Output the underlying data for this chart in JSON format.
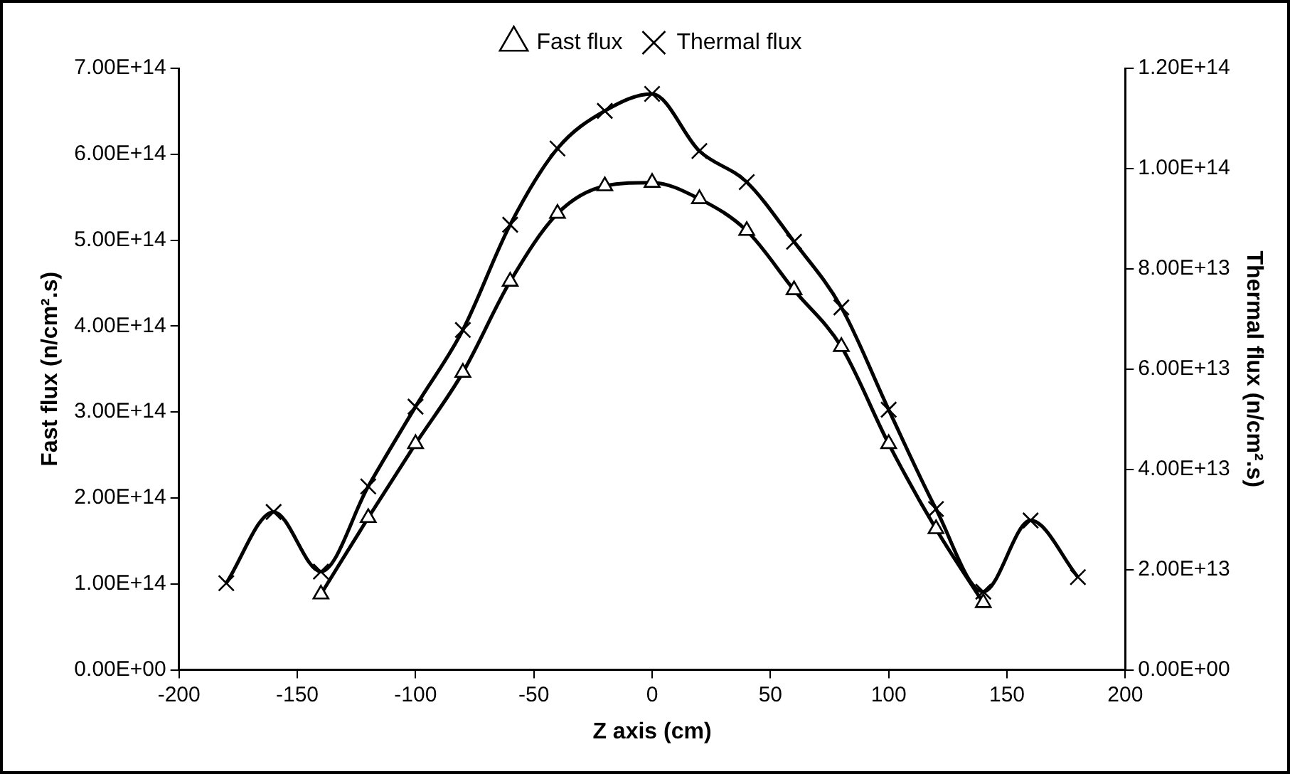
{
  "chart_data": {
    "type": "line",
    "xlabel": "Z axis (cm)",
    "ylabel": "Fast flux (n/cm².s)",
    "y2label": "Thermal flux (n/cm².s)",
    "xlim": [
      -200,
      200
    ],
    "xticks": [
      -200,
      -150,
      -100,
      -50,
      0,
      50,
      100,
      150,
      200
    ],
    "ylim": [
      0,
      700000000000000.0
    ],
    "yticks": [
      {
        "value": 0,
        "label": "0.00E+00"
      },
      {
        "value": 100000000000000.0,
        "label": "1.00E+14"
      },
      {
        "value": 200000000000000.0,
        "label": "2.00E+14"
      },
      {
        "value": 300000000000000.0,
        "label": "3.00E+14"
      },
      {
        "value": 400000000000000.0,
        "label": "4.00E+14"
      },
      {
        "value": 500000000000000.0,
        "label": "5.00E+14"
      },
      {
        "value": 600000000000000.0,
        "label": "6.00E+14"
      },
      {
        "value": 700000000000000.0,
        "label": "7.00E+14"
      }
    ],
    "y2lim": [
      0,
      120000000000000.0
    ],
    "y2ticks": [
      {
        "value": 0,
        "label": "0.00E+00"
      },
      {
        "value": 20000000000000.0,
        "label": "2.00E+13"
      },
      {
        "value": 40000000000000.0,
        "label": "4.00E+13"
      },
      {
        "value": 60000000000000.0,
        "label": "6.00E+13"
      },
      {
        "value": 80000000000000.0,
        "label": "8.00E+13"
      },
      {
        "value": 100000000000000.0,
        "label": "1.00E+14"
      },
      {
        "value": 120000000000000.0,
        "label": "1.20E+14"
      }
    ],
    "grid": false,
    "legend": "top",
    "series": [
      {
        "name": "Fast flux",
        "color": "#000000",
        "marker": "triangle",
        "x": [
          -140,
          -120,
          -100,
          -80,
          -60,
          -40,
          -20,
          0,
          20,
          40,
          60,
          80,
          100,
          120,
          140
        ],
        "values": [
          88000000000000.0,
          177000000000000.0,
          263000000000000.0,
          346000000000000.0,
          452000000000000.0,
          531000000000000.0,
          563000000000000.0,
          567000000000000.0,
          548000000000000.0,
          511000000000000.0,
          442000000000000.0,
          376000000000000.0,
          263000000000000.0,
          164000000000000.0,
          78000000000000.0
        ]
      },
      {
        "name": "Thermal flux",
        "color": "#000000",
        "marker": "cross",
        "axis": "y2",
        "x": [
          -180,
          -160,
          -140,
          -120,
          -100,
          -80,
          -60,
          -40,
          -20,
          0,
          20,
          40,
          60,
          80,
          100,
          120,
          140,
          160,
          180
        ],
        "values": [
          17300000000000.0,
          31500000000000.0,
          19600000000000.0,
          36600000000000.0,
          52500000000000.0,
          67800000000000.0,
          88800000000000.0,
          104000000000000.0,
          111500000000000.0,
          114900000000000.0,
          103500000000000.0,
          97300000000000.0,
          85400000000000.0,
          72300000000000.0,
          51900000000000.0,
          32100000000000.0,
          15600000000000.0,
          29800000000000.0,
          18500000000000.0
        ]
      }
    ]
  }
}
